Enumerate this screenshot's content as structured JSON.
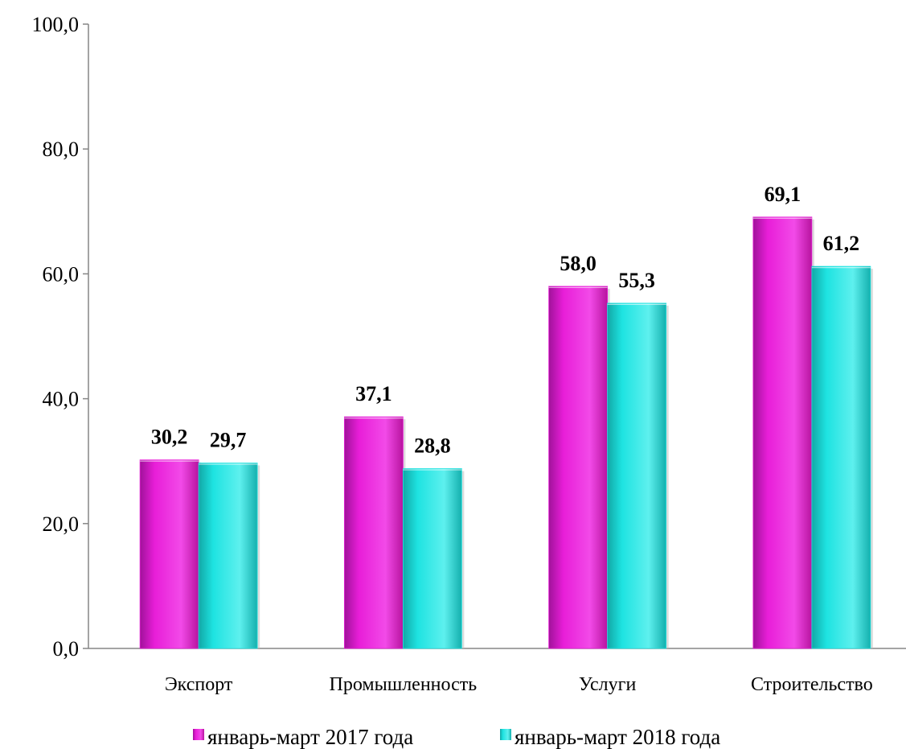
{
  "chart_data": {
    "type": "bar",
    "categories": [
      "Экспорт",
      "Промышленность",
      "Услуги",
      "Строительство"
    ],
    "series": [
      {
        "name": "январь-март 2017 года",
        "values": [
          30.2,
          37.1,
          58.0,
          69.1
        ],
        "color": "#e81ed8"
      },
      {
        "name": "январь-март 2018 года",
        "values": [
          29.7,
          28.8,
          55.3,
          61.2
        ],
        "color": "#1ee3e1"
      }
    ],
    "data_labels": [
      [
        "30,2",
        "37,1",
        "58,0",
        "69,1"
      ],
      [
        "29,7",
        "28,8",
        "55,3",
        "61,2"
      ]
    ],
    "yticks": [
      "0,0",
      "20,0",
      "40,0",
      "60,0",
      "80,0",
      "100,0"
    ],
    "ylim": [
      0,
      100
    ],
    "title": "",
    "xlabel": "",
    "ylabel": "",
    "grid": false,
    "legend_position": "bottom"
  }
}
